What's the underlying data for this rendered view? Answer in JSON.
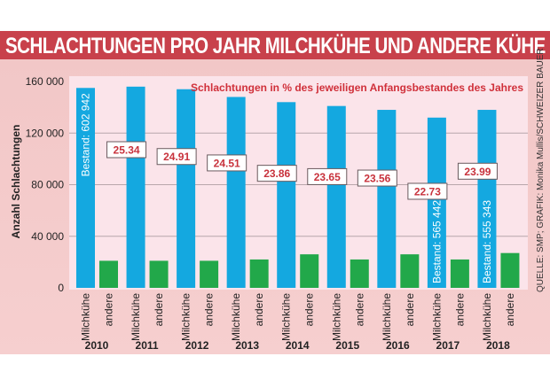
{
  "title": "SCHLACHTUNGEN PRO JAHR MILCHKÜHE UND ANDERE KÜHE",
  "source": "QUELLE: SMP; GRAFIK: Monika Mullis/SCHWEIZER BAUER",
  "colors": {
    "title_bg": "#c8414b",
    "milchkuehe": "#14a8e0",
    "andere": "#22a84a",
    "percent_text": "#c8323c",
    "plot_bg": "#fbe4ea",
    "panel_bg": "#f4cbcb"
  },
  "chart_data": {
    "type": "bar",
    "title": "SCHLACHTUNGEN PRO JAHR MILCHKÜHE UND ANDERE KÜHE",
    "subtitle": "Schlachtungen in % des jeweiligen Anfangsbestandes des Jahres",
    "xlabel": "",
    "ylabel": "Anzahl Schlachtungen",
    "ylim": [
      0,
      160000
    ],
    "yticks": [
      0,
      40000,
      80000,
      120000,
      160000
    ],
    "ytick_labels": [
      "0",
      "40 000",
      "80 000",
      "120 000",
      "160 000"
    ],
    "grid": true,
    "categories": [
      "2010",
      "2011",
      "2012",
      "2013",
      "2014",
      "2015",
      "2016",
      "2017",
      "2018"
    ],
    "sub_labels": [
      "Milchkühe",
      "andere"
    ],
    "series": [
      {
        "name": "Milchkühe",
        "values": [
          155000,
          156000,
          154000,
          148000,
          144000,
          141000,
          138000,
          132000,
          138000
        ]
      },
      {
        "name": "andere",
        "values": [
          21000,
          21000,
          21000,
          22000,
          26000,
          22000,
          26000,
          22000,
          27000
        ]
      }
    ],
    "percent_labels": [
      null,
      "25.34",
      "24.91",
      "24.51",
      "23.86",
      "23.65",
      "23.56",
      "22.73",
      "23.99"
    ],
    "percent_values": [
      null,
      25.34,
      24.91,
      24.51,
      23.86,
      23.65,
      23.56,
      22.73,
      23.99
    ],
    "bestand_annotations": [
      {
        "year": "2010",
        "text": "Bestand: 602 942"
      },
      {
        "year": "2017",
        "text": "Bestand: 565 442"
      },
      {
        "year": "2018",
        "text": "Bestand: 555 343"
      }
    ]
  }
}
